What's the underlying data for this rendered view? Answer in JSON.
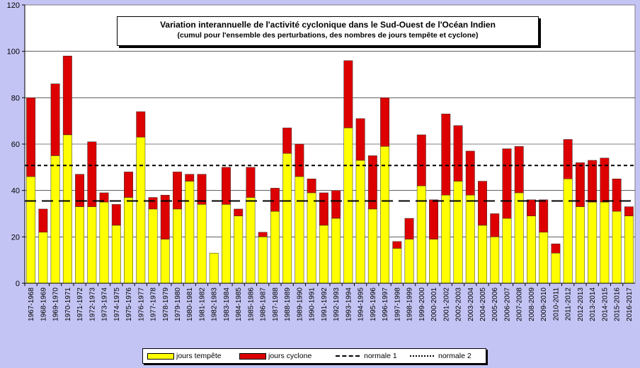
{
  "chart_data": {
    "type": "bar",
    "stacked": true,
    "title": "Variation interannuelle  de l'activité cyclonique  dans le Sud-Ouest de l'Océan Indien",
    "subtitle": "(cumul pour l'ensemble des perturbations, des nombres de jours tempête et cyclone)",
    "xlabel": "",
    "ylabel": "",
    "ylim": [
      0,
      120
    ],
    "yticks": [
      "0",
      "20",
      "40",
      "60",
      "80",
      "100",
      "120"
    ],
    "grid": true,
    "legend_position": "bottom",
    "categories": [
      "1967-1968",
      "1968-1969",
      "1969-1970",
      "1970-1971",
      "1971-1972",
      "1972-1973",
      "1973-1974",
      "1974-1975",
      "1975-1976",
      "1976-1977",
      "1977-1978",
      "1978-1979",
      "1979-1980",
      "1980-1981",
      "1981-1982",
      "1982-1983",
      "1983-1984",
      "1984-1985",
      "1985-1986",
      "1986-1987",
      "1987-1988",
      "1988-1989",
      "1989-1990",
      "1990-1991",
      "1991-1992",
      "1992-1993",
      "1993-1994",
      "1994-1995",
      "1995-1996",
      "1996-1997",
      "1997-1998",
      "1998-1999",
      "1999-2000",
      "2000-2001",
      "2001-2002",
      "2002-2003",
      "2003-2004",
      "2004-2005",
      "2005-2006",
      "2006-2007",
      "2007-2008",
      "2008-2009",
      "2009-2010",
      "2010-2011",
      "2011-2012",
      "2012-2013",
      "2013-2014",
      "2014-2015",
      "2015-2016",
      "2016-2017"
    ],
    "series": [
      {
        "name": "jours tempête",
        "color": "#ffff00",
        "values": [
          46,
          22,
          55,
          64,
          33,
          33,
          35,
          25,
          37,
          63,
          32,
          19,
          32,
          44,
          34,
          13,
          34,
          29,
          37,
          20,
          31,
          56,
          46,
          39,
          25,
          28,
          67,
          53,
          32,
          59,
          15,
          19,
          42,
          19,
          38,
          44,
          38,
          25,
          20,
          28,
          39,
          29,
          22,
          13,
          45,
          33,
          35,
          35,
          31,
          29
        ]
      },
      {
        "name": "jours cyclone",
        "color": "#dd0000",
        "values": [
          34,
          10,
          31,
          34,
          14,
          28,
          4,
          9,
          11,
          11,
          5,
          19,
          16,
          3,
          13,
          0,
          16,
          3,
          13,
          2,
          10,
          11,
          14,
          6,
          14,
          12,
          29,
          18,
          23,
          21,
          3,
          9,
          22,
          17,
          35,
          24,
          19,
          19,
          10,
          30,
          20,
          7,
          14,
          4,
          17,
          19,
          18,
          19,
          14,
          4
        ]
      }
    ],
    "reference_lines": [
      {
        "name": "normale 1",
        "value": 35.5,
        "style": "long-dash"
      },
      {
        "name": "normale 2",
        "value": 50.8,
        "style": "short-dash"
      }
    ],
    "plot_bg": "#ffffff",
    "page_bg": "#c4c4f4"
  }
}
